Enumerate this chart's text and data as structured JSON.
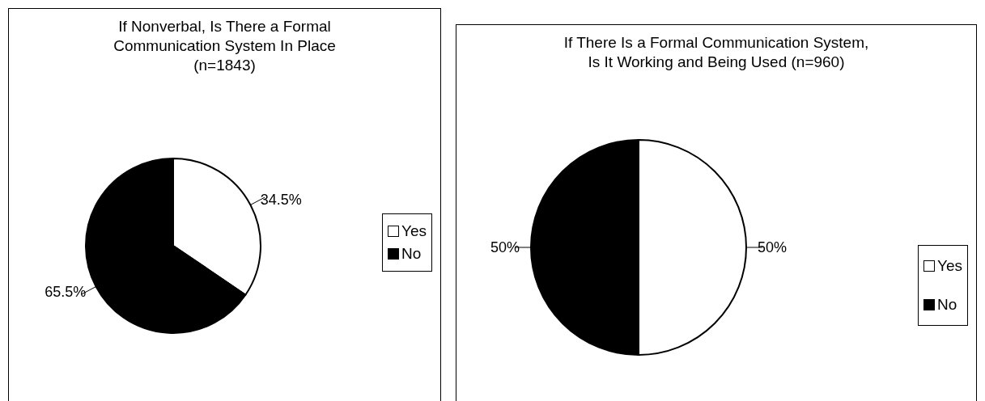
{
  "chart_data": [
    {
      "type": "pie",
      "title": "If Nonverbal, Is There a Formal\nCommunication System In Place\n(n=1843)",
      "categories": [
        "Yes",
        "No"
      ],
      "values": [
        34.5,
        65.5
      ],
      "colors": [
        "#ffffff",
        "#000000"
      ],
      "value_labels": [
        "34.5%",
        "65.5%"
      ],
      "legend": "right"
    },
    {
      "type": "pie",
      "title": "If There Is a Formal Communication System,\nIs It Working and Being Used (n=960)",
      "categories": [
        "Yes",
        "No"
      ],
      "values": [
        50,
        50
      ],
      "colors": [
        "#ffffff",
        "#000000"
      ],
      "value_labels": [
        "50%",
        "50%"
      ],
      "legend": "bottom right"
    }
  ]
}
